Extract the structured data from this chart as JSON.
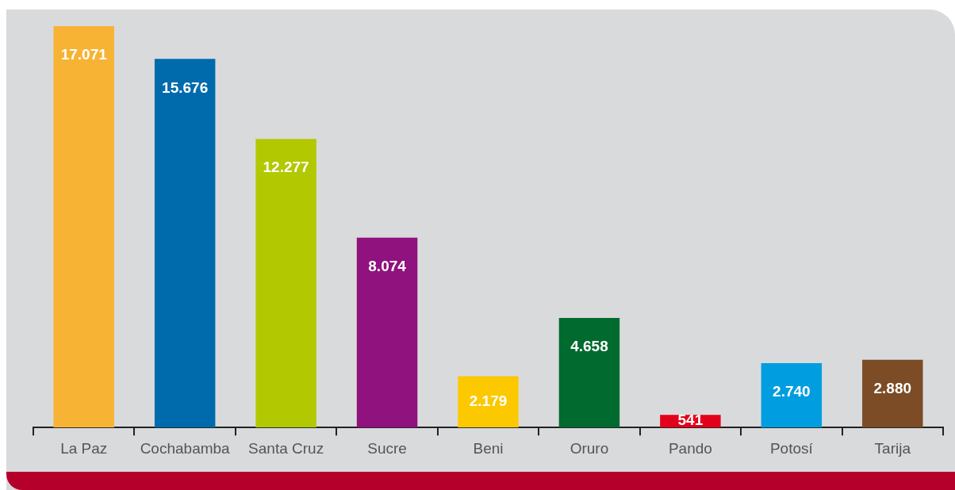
{
  "chart_data": {
    "type": "bar",
    "categories": [
      "La Paz",
      "Cochabamba",
      "Santa Cruz",
      "Sucre",
      "Beni",
      "Oruro",
      "Pando",
      "Potosí",
      "Tarija"
    ],
    "values": [
      17071,
      15676,
      12277,
      8074,
      2179,
      4658,
      541,
      2740,
      2880
    ],
    "colors": [
      "#f7b334",
      "#006bac",
      "#b2c800",
      "#8f127e",
      "#fcc800",
      "#006a2f",
      "#e2001a",
      "#009ee0",
      "#7b4c25"
    ],
    "value_labels": [
      "17.071",
      "15.676",
      "12.277",
      "8.074",
      "2.179",
      "4.658",
      "541",
      "2.740",
      "2.880"
    ],
    "tick_labels": "x",
    "grid": false,
    "legend": false
  }
}
